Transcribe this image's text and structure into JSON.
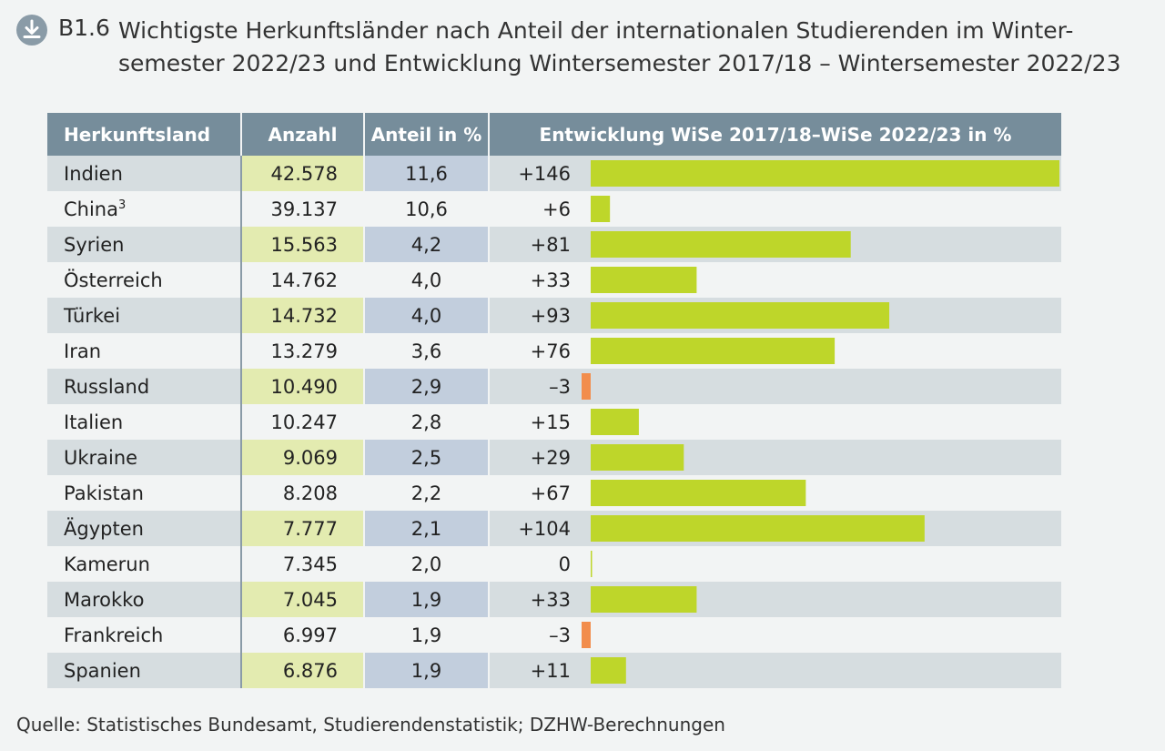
{
  "header": {
    "figure_number": "B1.6",
    "title": "Wichtigste Herkunftsländer nach Anteil der internationalen Studierenden im Winter- semester 2022/23 und Entwicklung Wintersemester 2017/18 – Wintersemester 2022/23",
    "download_icon": "download-icon"
  },
  "table": {
    "columns": [
      "Herkunftsland",
      "Anzahl",
      "Anteil in %",
      "Entwicklung WiSe 2017/18–WiSe 2022/23 in %"
    ]
  },
  "chart_data": {
    "type": "table",
    "title": "Wichtigste Herkunftsländer nach Anteil der internationalen Studierenden im Wintersemester 2022/23 und Entwicklung Wintersemester 2017/18 – Wintersemester 2022/23",
    "columns": [
      "Herkunftsland",
      "Anzahl",
      "Anteil in %",
      "Entwicklung WiSe 2017/18–WiSe 2022/23 in %"
    ],
    "bar_series": "Entwicklung in %",
    "bar_range": [
      -3,
      146
    ],
    "rows": [
      {
        "country": "Indien",
        "footnote": "",
        "count": "42.578",
        "share": "11,6",
        "change_label": "+146",
        "change": 146
      },
      {
        "country": "China",
        "footnote": "3",
        "count": "39.137",
        "share": "10,6",
        "change_label": "+6",
        "change": 6
      },
      {
        "country": "Syrien",
        "footnote": "",
        "count": "15.563",
        "share": "4,2",
        "change_label": "+81",
        "change": 81
      },
      {
        "country": "Österreich",
        "footnote": "",
        "count": "14.762",
        "share": "4,0",
        "change_label": "+33",
        "change": 33
      },
      {
        "country": "Türkei",
        "footnote": "",
        "count": "14.732",
        "share": "4,0",
        "change_label": "+93",
        "change": 93
      },
      {
        "country": "Iran",
        "footnote": "",
        "count": "13.279",
        "share": "3,6",
        "change_label": "+76",
        "change": 76
      },
      {
        "country": "Russland",
        "footnote": "",
        "count": "10.490",
        "share": "2,9",
        "change_label": "–3",
        "change": -3
      },
      {
        "country": "Italien",
        "footnote": "",
        "count": "10.247",
        "share": "2,8",
        "change_label": "+15",
        "change": 15
      },
      {
        "country": "Ukraine",
        "footnote": "",
        "count": "9.069",
        "share": "2,5",
        "change_label": "+29",
        "change": 29
      },
      {
        "country": "Pakistan",
        "footnote": "",
        "count": "8.208",
        "share": "2,2",
        "change_label": "+67",
        "change": 67
      },
      {
        "country": "Ägypten",
        "footnote": "",
        "count": "7.777",
        "share": "2,1",
        "change_label": "+104",
        "change": 104
      },
      {
        "country": "Kamerun",
        "footnote": "",
        "count": "7.345",
        "share": "2,0",
        "change_label": "0",
        "change": 0
      },
      {
        "country": "Marokko",
        "footnote": "",
        "count": "7.045",
        "share": "1,9",
        "change_label": "+33",
        "change": 33
      },
      {
        "country": "Frankreich",
        "footnote": "",
        "count": "6.997",
        "share": "1,9",
        "change_label": "–3",
        "change": -3
      },
      {
        "country": "Spanien",
        "footnote": "",
        "count": "6.876",
        "share": "1,9",
        "change_label": "+11",
        "change": 11
      }
    ]
  },
  "colors": {
    "positive": "#bed62a",
    "negative": "#f28d4c"
  },
  "footer": {
    "source": "Quelle: Statistisches Bundesamt, Studierendenstatistik; DZHW-Berechnungen"
  }
}
